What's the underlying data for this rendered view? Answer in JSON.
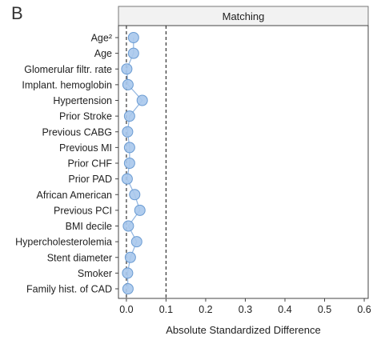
{
  "panel_label": "B",
  "chart_data": {
    "type": "scatter",
    "title": "Matching",
    "xlabel": "Absolute Standardized Difference",
    "ylabel": "",
    "xlim": [
      -0.02,
      0.61
    ],
    "x_ticks": [
      0.0,
      0.1,
      0.2,
      0.3,
      0.4,
      0.5,
      0.6
    ],
    "x_tick_labels": [
      "0.0",
      "0.1",
      "0.2",
      "0.3",
      "0.4",
      "0.5",
      "0.6"
    ],
    "reference_lines_x": [
      0.0,
      0.1
    ],
    "grid": false,
    "connect_points": true,
    "marker_color": "#a8c8ec",
    "marker_edge_color": "#6a9bd2",
    "categories": [
      "Age²",
      "Age",
      "Glomerular filtr. rate",
      "Implant. hemoglobin",
      "Hypertension",
      "Prior Stroke",
      "Previous CABG",
      "Previous MI",
      "Prior CHF",
      "Prior PAD",
      "African American",
      "Previous PCI",
      "BMI decile",
      "Hypercholesterolemia",
      "Stent diameter",
      "Smoker",
      "Family hist. of CAD"
    ],
    "values": [
      0.018,
      0.018,
      0.001,
      0.004,
      0.04,
      0.008,
      0.003,
      0.008,
      0.008,
      0.002,
      0.021,
      0.034,
      0.005,
      0.026,
      0.01,
      0.003,
      0.004
    ]
  }
}
